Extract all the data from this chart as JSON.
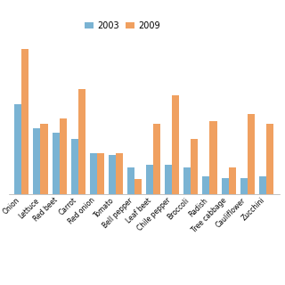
{
  "categories": [
    "Onion",
    "Lettuce",
    "Red beet",
    "Carrot",
    "Red onion",
    "Tomato",
    "Bell pepper",
    "Leaf beet",
    "Chile pepper",
    "Broccoli",
    "Radish",
    "Tree cabbage",
    "Cauliflower",
    "Zucchini"
  ],
  "values_2003": [
    62,
    45,
    42,
    38,
    28,
    27,
    18,
    20,
    20,
    18,
    12,
    11,
    11,
    12
  ],
  "values_2009": [
    100,
    48,
    52,
    72,
    28,
    28,
    10,
    48,
    68,
    38,
    50,
    18,
    55,
    48
  ],
  "color_2003": "#7ab3d3",
  "color_2009": "#f0a060",
  "legend_labels": [
    "2003",
    "2009"
  ],
  "ylim": [
    0,
    110
  ],
  "bar_width": 0.38,
  "grid_color": "#d0d0d0",
  "background_color": "#ffffff",
  "fig_width": 3.2,
  "fig_height": 3.2,
  "dpi": 100
}
